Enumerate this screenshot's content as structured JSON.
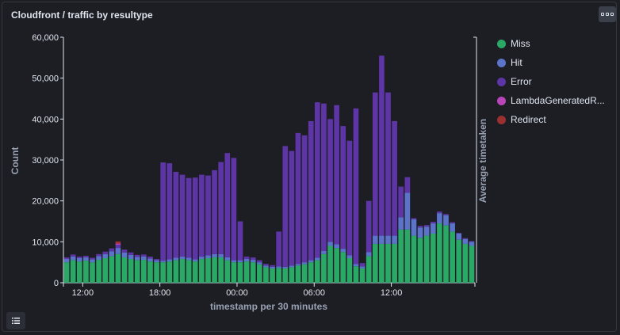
{
  "panel": {
    "title": "Cloudfront / traffic by resultype"
  },
  "icons": {
    "menu": "ellipsis-icon",
    "legend_toggle": "legend-list-icon"
  },
  "chart_data": {
    "type": "bar",
    "stacked": true,
    "title": "Cloudfront / traffic by resultype",
    "xlabel": "timestamp per 30 minutes",
    "ylabel": "Count",
    "y2label": "Average timetaken",
    "ylim": [
      0,
      60000
    ],
    "yticks": [
      0,
      10000,
      20000,
      30000,
      40000,
      50000,
      60000
    ],
    "ytick_labels": [
      "0",
      "10,000",
      "20,000",
      "30,000",
      "40,000",
      "50,000",
      "60,000"
    ],
    "xticks": [
      3,
      15,
      27,
      39,
      51
    ],
    "xtick_labels": [
      "12:00",
      "18:00",
      "00:00",
      "06:00",
      "12:00"
    ],
    "grid": false,
    "legend_position": "right",
    "colors": {
      "Miss": "#2aa865",
      "Hit": "#5b74c9",
      "Error": "#5e35a6",
      "LambdaGeneratedR": "#b846b9",
      "Redirect": "#9a3030"
    },
    "categories_count": 64,
    "series": [
      {
        "name": "Miss",
        "values": [
          5000,
          5500,
          5200,
          5400,
          5000,
          5600,
          6000,
          6500,
          7000,
          6200,
          5800,
          5500,
          5600,
          5200,
          5000,
          5000,
          5200,
          5500,
          5800,
          5500,
          5200,
          5800,
          6000,
          6200,
          6200,
          5500,
          5000,
          5000,
          5200,
          5000,
          4500,
          3800,
          3500,
          3600,
          3500,
          3800,
          4200,
          4500,
          5000,
          5500,
          7000,
          9000,
          8500,
          7500,
          6000,
          4000,
          3500,
          6500,
          9500,
          9500,
          9500,
          9500,
          13000,
          13000,
          11500,
          11000,
          11500,
          12000,
          14500,
          14000,
          12500,
          10500,
          9500,
          9000
        ]
      },
      {
        "name": "Hit",
        "values": [
          800,
          900,
          800,
          800,
          700,
          900,
          1000,
          1200,
          1500,
          1200,
          1000,
          800,
          800,
          700,
          500,
          400,
          500,
          600,
          600,
          600,
          500,
          600,
          700,
          800,
          800,
          700,
          500,
          500,
          600,
          600,
          500,
          400,
          400,
          400,
          400,
          400,
          400,
          500,
          500,
          600,
          800,
          1000,
          900,
          800,
          700,
          600,
          500,
          1000,
          2000,
          2000,
          2000,
          2000,
          3000,
          9000,
          4000,
          2500,
          2200,
          2500,
          2500,
          2500,
          2000,
          1500,
          1200,
          1000
        ]
      },
      {
        "name": "Error",
        "values": [
          400,
          500,
          400,
          400,
          400,
          500,
          600,
          700,
          800,
          700,
          600,
          500,
          500,
          500,
          300,
          24000,
          23500,
          21000,
          20000,
          19500,
          20000,
          20000,
          19500,
          20500,
          22500,
          25500,
          25000,
          9500,
          600,
          600,
          500,
          400,
          400,
          8500,
          29500,
          28000,
          32000,
          31000,
          34000,
          38000,
          36000,
          30000,
          34000,
          30000,
          28000,
          38000,
          800,
          12500,
          35000,
          44000,
          35000,
          28000,
          7500,
          3800,
          300,
          400,
          400,
          400,
          400,
          300,
          300,
          200,
          200,
          200
        ]
      },
      {
        "name": "LambdaGeneratedR",
        "values": [
          0,
          0,
          0,
          0,
          0,
          0,
          0,
          0,
          300,
          0,
          0,
          0,
          0,
          0,
          0,
          0,
          0,
          0,
          0,
          0,
          0,
          0,
          0,
          0,
          0,
          0,
          0,
          0,
          0,
          0,
          0,
          0,
          0,
          0,
          0,
          0,
          0,
          0,
          0,
          0,
          0,
          0,
          0,
          0,
          0,
          0,
          0,
          0,
          0,
          0,
          0,
          0,
          0,
          0,
          0,
          0,
          0,
          0,
          0,
          0,
          0,
          0,
          0,
          0
        ]
      },
      {
        "name": "Redirect",
        "values": [
          0,
          0,
          0,
          0,
          0,
          0,
          0,
          0,
          500,
          0,
          0,
          0,
          0,
          0,
          0,
          0,
          0,
          0,
          0,
          0,
          0,
          0,
          0,
          0,
          0,
          0,
          0,
          0,
          0,
          0,
          0,
          0,
          0,
          0,
          0,
          0,
          0,
          0,
          0,
          0,
          0,
          0,
          0,
          0,
          0,
          0,
          0,
          0,
          0,
          0,
          0,
          0,
          0,
          0,
          0,
          0,
          0,
          0,
          0,
          0,
          0,
          0,
          0,
          0
        ]
      }
    ],
    "legend": [
      "Miss",
      "Hit",
      "Error",
      "LambdaGeneratedR...",
      "Redirect"
    ]
  }
}
